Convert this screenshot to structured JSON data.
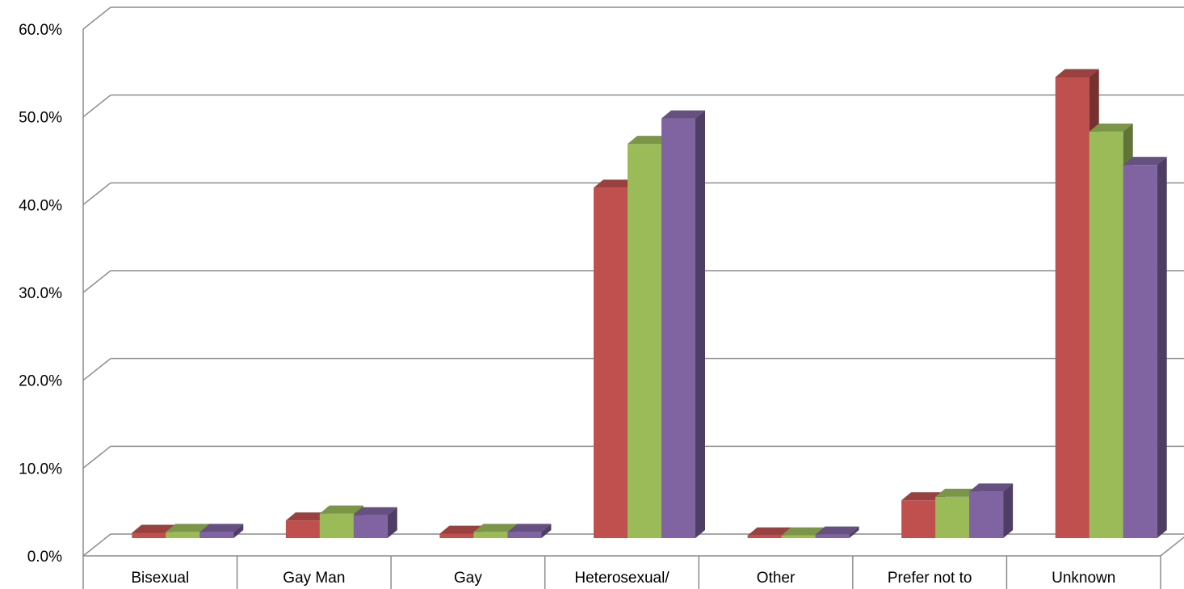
{
  "chart_data": {
    "type": "bar",
    "style": "3d-clustered-column",
    "categories": [
      "Bisexual",
      "Gay Man",
      "Gay",
      "Heterosexual/",
      "Other",
      "Prefer not to",
      "Unknown"
    ],
    "series": [
      {
        "color": "#C0504D",
        "values": [
          0.6,
          2.0,
          0.5,
          39.9,
          0.3,
          4.3,
          52.5
        ]
      },
      {
        "color": "#9BBB59",
        "values": [
          0.7,
          2.8,
          0.7,
          44.9,
          0.3,
          4.7,
          46.3
        ]
      },
      {
        "color": "#8064A2",
        "values": [
          0.7,
          2.6,
          0.7,
          47.8,
          0.4,
          5.3,
          42.5
        ]
      }
    ],
    "y_ticks": [
      "0.0%",
      "10.0%",
      "20.0%",
      "30.0%",
      "40.0%",
      "50.0%",
      "60.0%"
    ],
    "ylim": [
      0,
      60
    ],
    "grid": true,
    "legend": "none"
  }
}
